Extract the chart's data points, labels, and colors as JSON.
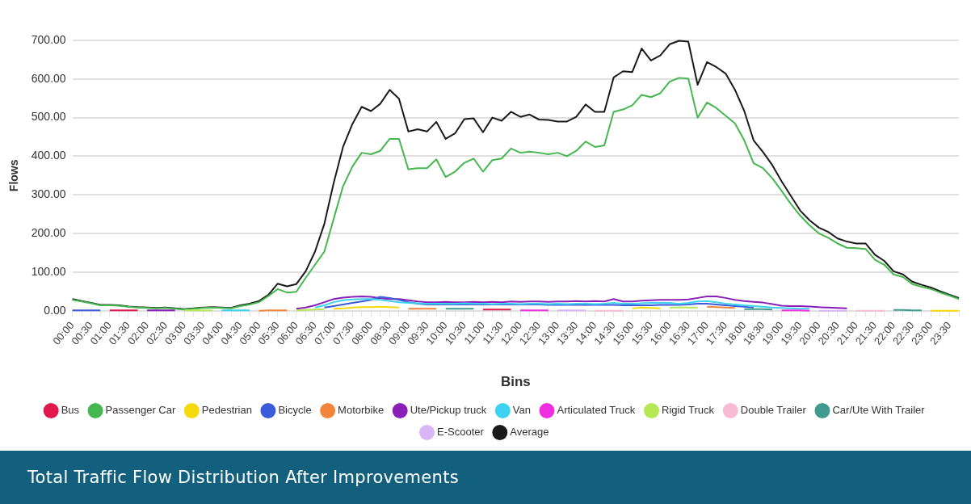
{
  "chart_data": {
    "type": "line",
    "title": "Total Traffic Flow Distribution After Improvements",
    "xlabel": "Bins",
    "ylabel": "Flows",
    "categories": [
      "00:00",
      null,
      "00:30",
      null,
      "01:00",
      null,
      "01:30",
      null,
      "02:00",
      null,
      "02:30",
      null,
      "03:00",
      null,
      "03:30",
      null,
      "04:00",
      null,
      "04:30",
      null,
      "05:00",
      null,
      "05:30",
      null,
      "06:00",
      null,
      "06:30",
      null,
      "07:00",
      null,
      "07:30",
      null,
      "08:00",
      null,
      "08:30",
      null,
      "09:00",
      null,
      "09:30",
      null,
      "10:00",
      null,
      "10:30",
      null,
      "11:00",
      null,
      "11:30",
      null,
      "12:00",
      null,
      "12:30",
      null,
      "13:00",
      null,
      "13:30",
      null,
      "14:00",
      null,
      "14:30",
      null,
      "15:00",
      null,
      "15:30",
      null,
      "16:00",
      null,
      "16:30",
      null,
      "17:00",
      null,
      "17:30",
      null,
      "18:00",
      null,
      "18:30",
      null,
      "19:00",
      null,
      "19:30",
      null,
      "20:00",
      null,
      "20:30",
      null,
      "21:00",
      null,
      "21:30",
      null,
      "22:00",
      null,
      "22:30",
      null,
      "23:00",
      null,
      "23:30",
      null
    ],
    "ylim": [
      0,
      700
    ],
    "yticks": [
      {
        "value": 0,
        "label": "0.00"
      },
      {
        "value": 100,
        "label": "100.00"
      },
      {
        "value": 200,
        "label": "200.00"
      },
      {
        "value": 300,
        "label": "300.00"
      },
      {
        "value": 400,
        "label": "400.00"
      },
      {
        "value": 500,
        "label": "500.00"
      },
      {
        "value": 600,
        "label": "600.00"
      },
      {
        "value": 700,
        "label": "700.00"
      }
    ],
    "grid": "y",
    "legend": "bottom",
    "marker": "none",
    "line_style": "solid",
    "series": [
      {
        "name": "Bus",
        "color": "#e0184d",
        "values": [
          null,
          null,
          null,
          null,
          1,
          1,
          1,
          1,
          null,
          null,
          null,
          null,
          null,
          null,
          null,
          null,
          null,
          null,
          null,
          null,
          null,
          null,
          null,
          null,
          null,
          null,
          null,
          null,
          null,
          null,
          null,
          null,
          null,
          null,
          null,
          null,
          null,
          null,
          null,
          null,
          null,
          null,
          null,
          null,
          3,
          3,
          3,
          3,
          null,
          null,
          null,
          null,
          null,
          null,
          null,
          null,
          null,
          null,
          null,
          null,
          null,
          null,
          null,
          null,
          null,
          null,
          null,
          null,
          null,
          null,
          null,
          null,
          null,
          null,
          null,
          null,
          null,
          null,
          null,
          null,
          null,
          null,
          null,
          null,
          null,
          null,
          null,
          null,
          null,
          null,
          null,
          null,
          null,
          null,
          null,
          null
        ]
      },
      {
        "name": "Passenger Car",
        "color": "#45b74f",
        "values": [
          28,
          24,
          19,
          14,
          14,
          13,
          10,
          8,
          7,
          6,
          7,
          5,
          3,
          5,
          7,
          8,
          7,
          6,
          12,
          16,
          22,
          38,
          56,
          47,
          49,
          85,
          119,
          153,
          238,
          322,
          373,
          409,
          405,
          414,
          445,
          445,
          366,
          369,
          369,
          392,
          346,
          360,
          383,
          394,
          360,
          390,
          394,
          420,
          409,
          412,
          409,
          405,
          409,
          400,
          414,
          438,
          424,
          428,
          515,
          521,
          532,
          559,
          553,
          563,
          593,
          603,
          601,
          500,
          539,
          525,
          505,
          485,
          441,
          382,
          369,
          343,
          310,
          276,
          246,
          221,
          200,
          189,
          174,
          163,
          162,
          160,
          132,
          119,
          94,
          87,
          69,
          62,
          56,
          47,
          39,
          30
        ]
      },
      {
        "name": "Pedestrian",
        "color": "#f5d90a",
        "values": [
          null,
          null,
          null,
          null,
          null,
          null,
          null,
          null,
          null,
          null,
          null,
          null,
          null,
          null,
          null,
          null,
          null,
          null,
          null,
          null,
          null,
          null,
          null,
          null,
          null,
          null,
          null,
          null,
          5,
          6,
          8,
          9,
          9,
          10,
          9,
          8,
          null,
          null,
          null,
          null,
          null,
          null,
          null,
          null,
          null,
          null,
          null,
          null,
          null,
          null,
          null,
          null,
          null,
          null,
          null,
          null,
          null,
          null,
          null,
          null,
          6,
          8,
          7,
          6,
          null,
          null,
          null,
          null,
          null,
          null,
          null,
          null,
          null,
          null,
          null,
          null,
          null,
          null,
          null,
          null,
          null,
          null,
          null,
          null,
          null,
          null,
          null,
          null,
          null,
          null,
          null,
          null,
          0,
          0,
          0,
          0
        ]
      },
      {
        "name": "Bicycle",
        "color": "#3b5bdb",
        "values": [
          1,
          1,
          1,
          1,
          null,
          null,
          null,
          null,
          null,
          null,
          null,
          null,
          null,
          null,
          null,
          null,
          null,
          null,
          null,
          null,
          null,
          null,
          null,
          null,
          null,
          null,
          null,
          8,
          12,
          16,
          20,
          24,
          28,
          36,
          33,
          28,
          22,
          18,
          16,
          16,
          16,
          16,
          16,
          16,
          16,
          16,
          16,
          16,
          16,
          16,
          16,
          15,
          15,
          15,
          15,
          15,
          15,
          15,
          15,
          14,
          14,
          14,
          14,
          15,
          15,
          15,
          16,
          18,
          18,
          16,
          14,
          12,
          10,
          8,
          null,
          null,
          null,
          null,
          null,
          null,
          null,
          null,
          null,
          null,
          null,
          null,
          null,
          null,
          null,
          null,
          null,
          null,
          null,
          null,
          null,
          null
        ]
      },
      {
        "name": "Motorbike",
        "color": "#f2853a",
        "values": [
          null,
          null,
          null,
          null,
          null,
          null,
          null,
          null,
          null,
          null,
          null,
          null,
          null,
          null,
          null,
          null,
          null,
          null,
          null,
          null,
          0,
          1,
          1,
          1,
          null,
          null,
          null,
          null,
          null,
          null,
          null,
          null,
          null,
          null,
          null,
          null,
          5,
          5,
          5,
          5,
          null,
          null,
          null,
          null,
          null,
          null,
          null,
          null,
          null,
          null,
          null,
          null,
          null,
          null,
          null,
          null,
          null,
          null,
          null,
          null,
          null,
          null,
          null,
          null,
          null,
          null,
          null,
          null,
          10,
          9,
          8,
          7,
          null,
          null,
          null,
          null,
          null,
          null,
          null,
          null,
          null,
          null,
          null,
          null,
          null,
          null,
          null,
          null,
          null,
          null,
          null,
          null,
          null,
          null,
          null,
          null
        ]
      },
      {
        "name": "Ute/Pickup truck",
        "color": "#8a1fb8",
        "values": [
          null,
          null,
          null,
          null,
          null,
          null,
          null,
          null,
          1,
          1,
          1,
          1,
          null,
          null,
          null,
          null,
          null,
          null,
          null,
          null,
          null,
          null,
          null,
          null,
          5,
          8,
          14,
          22,
          30,
          34,
          36,
          37,
          36,
          32,
          30,
          30,
          27,
          24,
          22,
          22,
          23,
          22,
          22,
          23,
          22,
          23,
          22,
          24,
          23,
          24,
          24,
          23,
          24,
          24,
          25,
          24,
          25,
          24,
          30,
          24,
          24,
          26,
          27,
          28,
          28,
          28,
          29,
          33,
          37,
          37,
          33,
          28,
          25,
          23,
          21,
          17,
          13,
          12,
          12,
          11,
          9,
          8,
          7,
          6,
          null,
          null,
          null,
          null,
          null,
          null,
          null,
          null,
          null,
          null,
          null,
          null
        ]
      },
      {
        "name": "Van",
        "color": "#3dd3f0",
        "values": [
          null,
          null,
          null,
          null,
          null,
          null,
          null,
          null,
          null,
          null,
          null,
          null,
          null,
          null,
          null,
          null,
          1,
          1,
          1,
          1,
          null,
          null,
          null,
          null,
          null,
          null,
          8,
          14,
          22,
          27,
          29,
          30,
          30,
          28,
          25,
          22,
          20,
          19,
          18,
          18,
          18,
          18,
          19,
          18,
          18,
          17,
          18,
          18,
          17,
          18,
          18,
          17,
          18,
          17,
          18,
          18,
          17,
          18,
          20,
          18,
          18,
          19,
          20,
          20,
          20,
          18,
          20,
          24,
          25,
          22,
          18,
          16,
          14,
          12,
          10,
          8,
          7,
          6,
          5,
          5,
          null,
          null,
          null,
          null,
          null,
          null,
          null,
          null,
          null,
          null,
          null,
          null,
          null,
          null,
          null,
          null
        ]
      },
      {
        "name": "Articulated Truck",
        "color": "#ee2ee0",
        "values": [
          null,
          null,
          null,
          null,
          null,
          null,
          null,
          null,
          null,
          null,
          null,
          null,
          null,
          null,
          null,
          null,
          null,
          null,
          null,
          null,
          null,
          null,
          null,
          null,
          null,
          null,
          null,
          null,
          null,
          null,
          null,
          null,
          null,
          null,
          null,
          null,
          null,
          null,
          null,
          null,
          null,
          null,
          null,
          null,
          null,
          null,
          null,
          null,
          1,
          1,
          1,
          1,
          null,
          null,
          null,
          null,
          null,
          null,
          null,
          null,
          null,
          null,
          null,
          null,
          null,
          null,
          null,
          null,
          null,
          null,
          null,
          null,
          null,
          null,
          null,
          null,
          1,
          1,
          1,
          0,
          null,
          null,
          null,
          null,
          null,
          null,
          null,
          null,
          null,
          null,
          null,
          null,
          null,
          null,
          null,
          null
        ]
      },
      {
        "name": "Rigid Truck",
        "color": "#b5e853",
        "values": [
          null,
          null,
          null,
          null,
          null,
          null,
          null,
          null,
          null,
          null,
          null,
          null,
          1,
          1,
          1,
          1,
          null,
          null,
          null,
          null,
          null,
          null,
          null,
          null,
          1,
          2,
          3,
          4,
          null,
          null,
          null,
          null,
          null,
          null,
          null,
          null,
          null,
          null,
          null,
          null,
          null,
          null,
          null,
          null,
          null,
          null,
          null,
          null,
          null,
          null,
          null,
          null,
          null,
          null,
          null,
          null,
          null,
          null,
          null,
          null,
          null,
          null,
          null,
          null,
          8,
          8,
          8,
          8,
          null,
          null,
          null,
          null,
          null,
          null,
          null,
          null,
          null,
          null,
          null,
          null,
          null,
          null,
          null,
          null,
          null,
          null,
          null,
          null,
          null,
          null,
          null,
          null,
          null,
          null,
          null,
          null
        ]
      },
      {
        "name": "Double Trailer",
        "color": "#f7bcd3",
        "values": [
          null,
          null,
          null,
          null,
          null,
          null,
          null,
          null,
          null,
          null,
          null,
          null,
          null,
          null,
          null,
          null,
          null,
          null,
          null,
          null,
          null,
          null,
          null,
          null,
          null,
          null,
          null,
          null,
          null,
          null,
          null,
          null,
          null,
          null,
          null,
          null,
          null,
          null,
          null,
          null,
          null,
          null,
          null,
          null,
          null,
          null,
          null,
          null,
          null,
          null,
          null,
          null,
          null,
          null,
          null,
          null,
          0,
          0,
          0,
          0,
          null,
          null,
          null,
          null,
          null,
          null,
          null,
          null,
          null,
          null,
          null,
          null,
          null,
          null,
          null,
          null,
          null,
          null,
          null,
          null,
          null,
          null,
          null,
          null,
          0,
          0,
          0,
          0,
          null,
          null,
          null,
          null,
          null,
          null,
          null,
          null
        ]
      },
      {
        "name": "Car/Ute With Trailer",
        "color": "#3f9a8f",
        "values": [
          null,
          null,
          null,
          null,
          null,
          null,
          null,
          null,
          null,
          null,
          null,
          null,
          null,
          null,
          null,
          null,
          null,
          null,
          null,
          null,
          null,
          null,
          null,
          null,
          null,
          null,
          null,
          null,
          null,
          null,
          null,
          null,
          null,
          null,
          null,
          null,
          null,
          null,
          null,
          null,
          5,
          5,
          5,
          5,
          null,
          null,
          null,
          null,
          null,
          null,
          null,
          null,
          null,
          null,
          null,
          null,
          null,
          null,
          null,
          null,
          null,
          null,
          null,
          null,
          null,
          null,
          null,
          null,
          null,
          null,
          null,
          null,
          4,
          4,
          4,
          3,
          null,
          null,
          null,
          null,
          null,
          null,
          null,
          null,
          null,
          null,
          null,
          null,
          2,
          2,
          1,
          1,
          null,
          null,
          null,
          null
        ]
      },
      {
        "name": "E-Scooter",
        "color": "#d8b6f5",
        "values": [
          null,
          null,
          null,
          null,
          null,
          null,
          null,
          null,
          null,
          null,
          null,
          null,
          null,
          null,
          null,
          null,
          null,
          null,
          null,
          null,
          null,
          null,
          null,
          null,
          null,
          null,
          null,
          null,
          null,
          null,
          null,
          null,
          null,
          null,
          null,
          null,
          null,
          null,
          null,
          null,
          null,
          null,
          null,
          null,
          null,
          null,
          null,
          null,
          null,
          null,
          null,
          null,
          1,
          1,
          1,
          1,
          null,
          null,
          null,
          null,
          null,
          null,
          null,
          null,
          null,
          null,
          null,
          null,
          null,
          null,
          null,
          null,
          null,
          null,
          null,
          null,
          null,
          null,
          null,
          null,
          0,
          0,
          0,
          0,
          null,
          null,
          null,
          null,
          null,
          null,
          null,
          null,
          null,
          null,
          null,
          null
        ]
      },
      {
        "name": "Average",
        "color": "#1a1a1a",
        "values": [
          30,
          25,
          20,
          15,
          15,
          14,
          11,
          9,
          8,
          7,
          8,
          6,
          4,
          6,
          8,
          9,
          8,
          7,
          14,
          18,
          25,
          41,
          70,
          63,
          69,
          102,
          153,
          225,
          331,
          424,
          483,
          528,
          517,
          536,
          572,
          549,
          464,
          470,
          464,
          489,
          445,
          459,
          496,
          498,
          462,
          500,
          492,
          515,
          502,
          508,
          495,
          494,
          490,
          490,
          502,
          534,
          515,
          515,
          604,
          620,
          618,
          679,
          648,
          661,
          690,
          699,
          697,
          585,
          644,
          631,
          614,
          572,
          517,
          441,
          411,
          377,
          335,
          297,
          259,
          234,
          215,
          204,
          187,
          179,
          174,
          174,
          145,
          129,
          102,
          94,
          75,
          67,
          60,
          50,
          41,
          33
        ]
      }
    ]
  }
}
